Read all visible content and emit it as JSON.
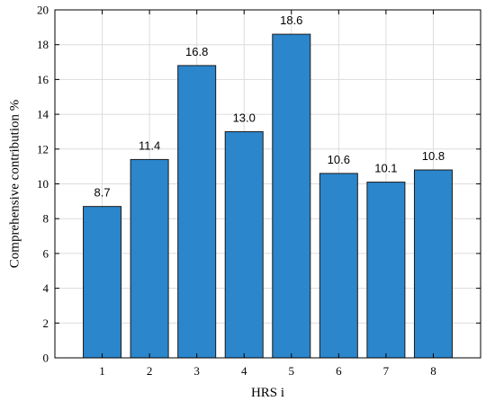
{
  "chart_data": {
    "type": "bar",
    "categories": [
      "1",
      "2",
      "3",
      "4",
      "5",
      "6",
      "7",
      "8"
    ],
    "values": [
      8.7,
      11.4,
      16.8,
      13.0,
      18.6,
      10.6,
      10.1,
      10.8
    ],
    "data_labels": [
      "8.7",
      "11.4",
      "16.8",
      "13.0",
      "18.6",
      "10.6",
      "10.1",
      "10.8"
    ],
    "title": "",
    "xlabel": "HRS i",
    "ylabel": "Comprehensive contribution %",
    "ylim": [
      0,
      20
    ],
    "yticks": [
      0,
      2,
      4,
      6,
      8,
      10,
      12,
      14,
      16,
      18,
      20
    ],
    "grid": true,
    "bar_color": "#2b86cc"
  }
}
